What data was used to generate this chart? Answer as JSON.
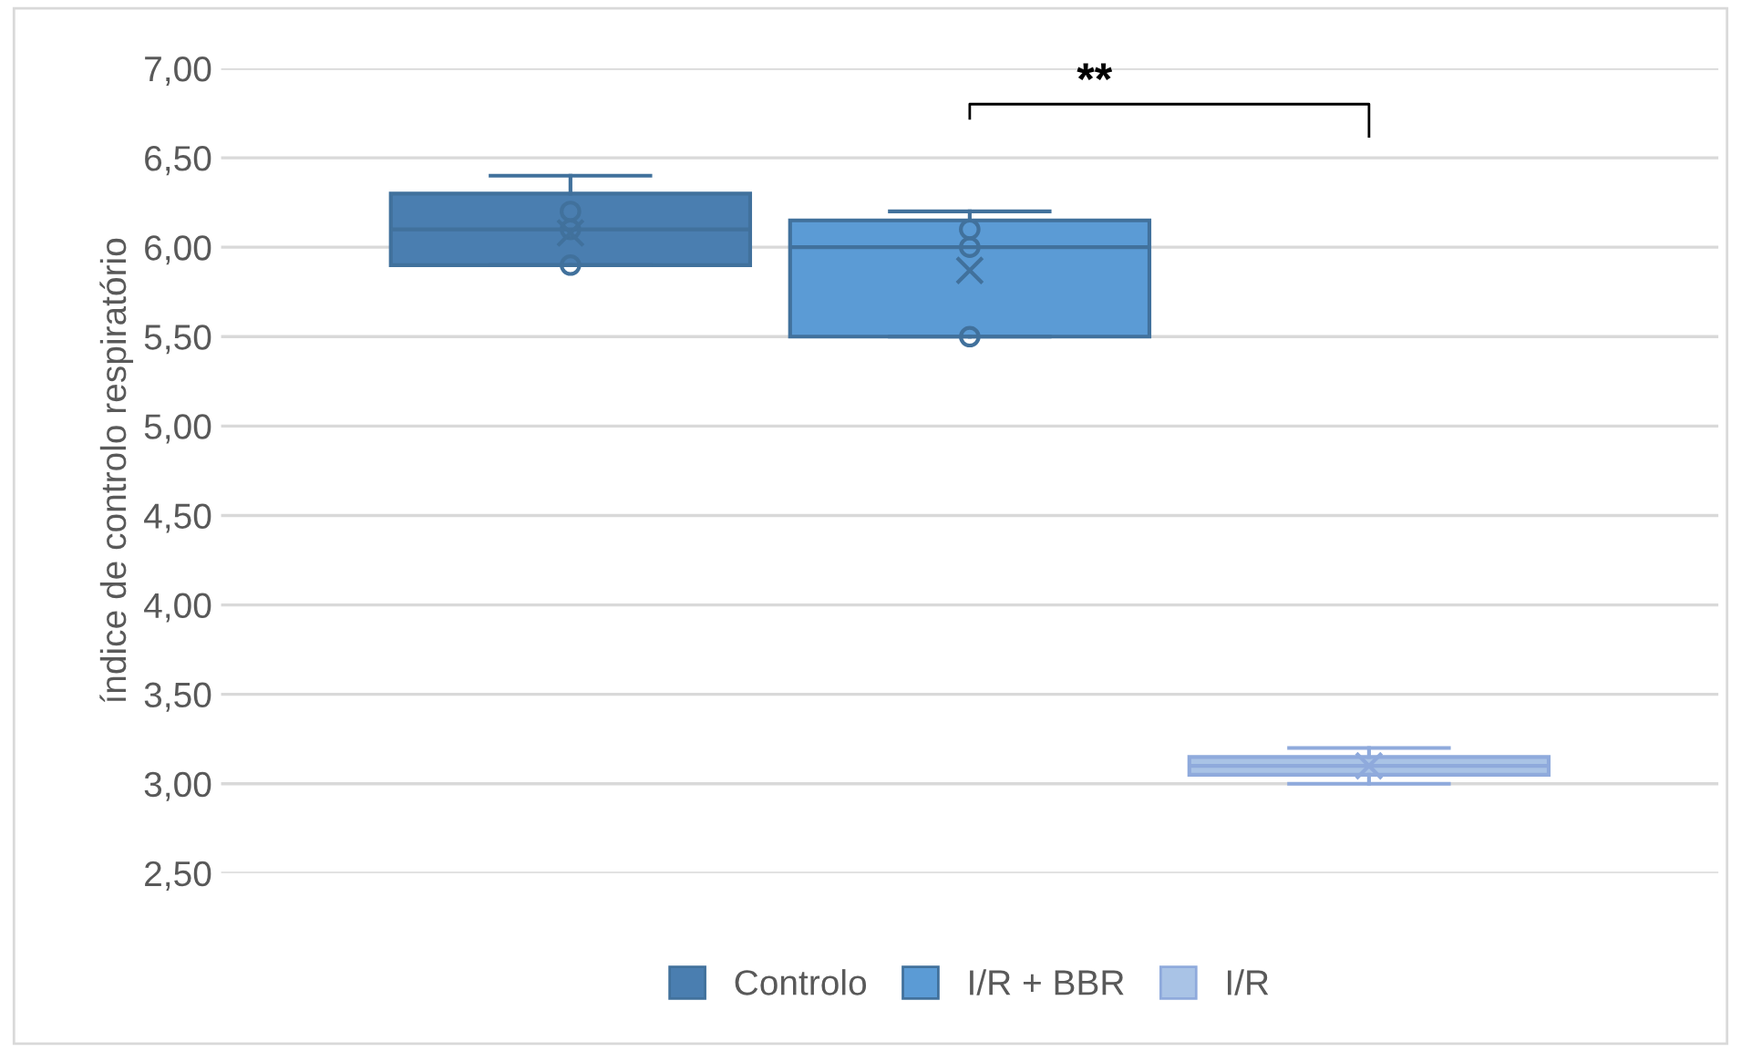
{
  "chart_data": {
    "type": "box",
    "ylabel": "índice de controlo respiratório",
    "categories": [
      null
    ],
    "series": [
      {
        "name": "Controlo",
        "color": "#4a7eb0",
        "boxes": [
          {
            "low": 5.9,
            "q1": 5.9,
            "median": 6.1,
            "q3": 6.3,
            "high": 6.4,
            "mean": 6.08,
            "outliers": [
              6.2,
              6.1,
              5.9
            ]
          }
        ]
      },
      {
        "name": "I/R + BBR",
        "color": "#5b9bd5",
        "boxes": [
          {
            "low": 5.5,
            "q1": 5.5,
            "median": 6.0,
            "q3": 6.15,
            "high": 6.2,
            "mean": 5.87,
            "outliers": [
              6.1,
              6.0,
              5.5
            ]
          }
        ]
      },
      {
        "name": "I/R",
        "color": "#a9c3e6",
        "boxes": [
          {
            "low": 3.0,
            "q1": 3.05,
            "median": 3.1,
            "q3": 3.15,
            "high": 3.2,
            "mean": 3.1
          }
        ]
      }
    ],
    "annotations": [
      "**"
    ],
    "ylim": [
      2.5,
      7.0
    ],
    "yticks": [
      {
        "value": 2.5,
        "label": "2,50"
      },
      {
        "value": 3.0,
        "label": "3,00"
      },
      {
        "value": 3.5,
        "label": "3,50"
      },
      {
        "value": 4.0,
        "label": "4,00"
      },
      {
        "value": 4.5,
        "label": "4,50"
      },
      {
        "value": 5.0,
        "label": "5,00"
      },
      {
        "value": 5.5,
        "label": "5,50"
      },
      {
        "value": 6.0,
        "label": "6,00"
      },
      {
        "value": 6.5,
        "label": "6,50"
      },
      {
        "value": 7.0,
        "label": "7,00"
      }
    ],
    "grid": "y",
    "legend": "bottom",
    "tick_labels": "y"
  }
}
